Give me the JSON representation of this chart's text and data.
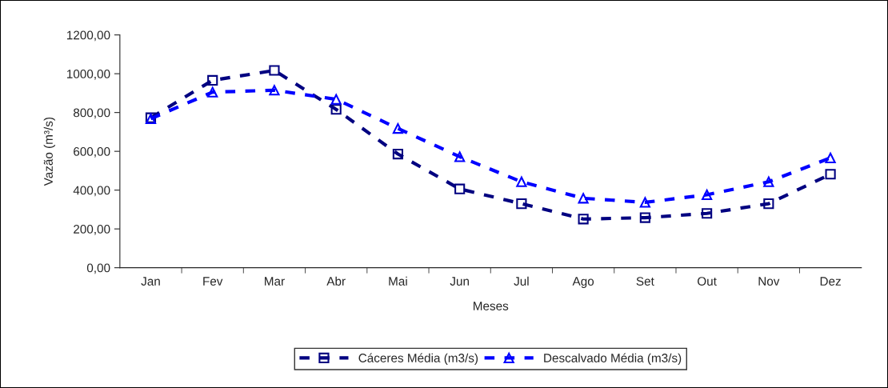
{
  "chart_data": {
    "type": "line",
    "xlabel": "Meses",
    "ylabel": "Vazão (m³/s)",
    "categories": [
      "Jan",
      "Fev",
      "Mar",
      "Abr",
      "Mai",
      "Jun",
      "Jul",
      "Ago",
      "Set",
      "Out",
      "Nov",
      "Dez"
    ],
    "series": [
      {
        "name": "Cáceres Média (m3/s)",
        "color": "#000080",
        "marker": "square",
        "values": [
          773,
          966,
          1017,
          816,
          586,
          406,
          330,
          251,
          258,
          280,
          330,
          482
        ]
      },
      {
        "name": "Descalvado Média (m3/s)",
        "color": "#0000ff",
        "marker": "triangle",
        "values": [
          768,
          905,
          915,
          868,
          718,
          572,
          443,
          358,
          337,
          376,
          443,
          566
        ]
      }
    ],
    "ylim": [
      0,
      1200
    ],
    "yticks": [
      {
        "value": 0,
        "label": "0,00"
      },
      {
        "value": 200,
        "label": "200,00"
      },
      {
        "value": 400,
        "label": "400,00"
      },
      {
        "value": 600,
        "label": "600,00"
      },
      {
        "value": 800,
        "label": "800,00"
      },
      {
        "value": 1000,
        "label": "1000,00"
      },
      {
        "value": 1200,
        "label": "1200,00"
      }
    ],
    "line_style": "dashed",
    "grid": false,
    "legend": "bottom"
  }
}
